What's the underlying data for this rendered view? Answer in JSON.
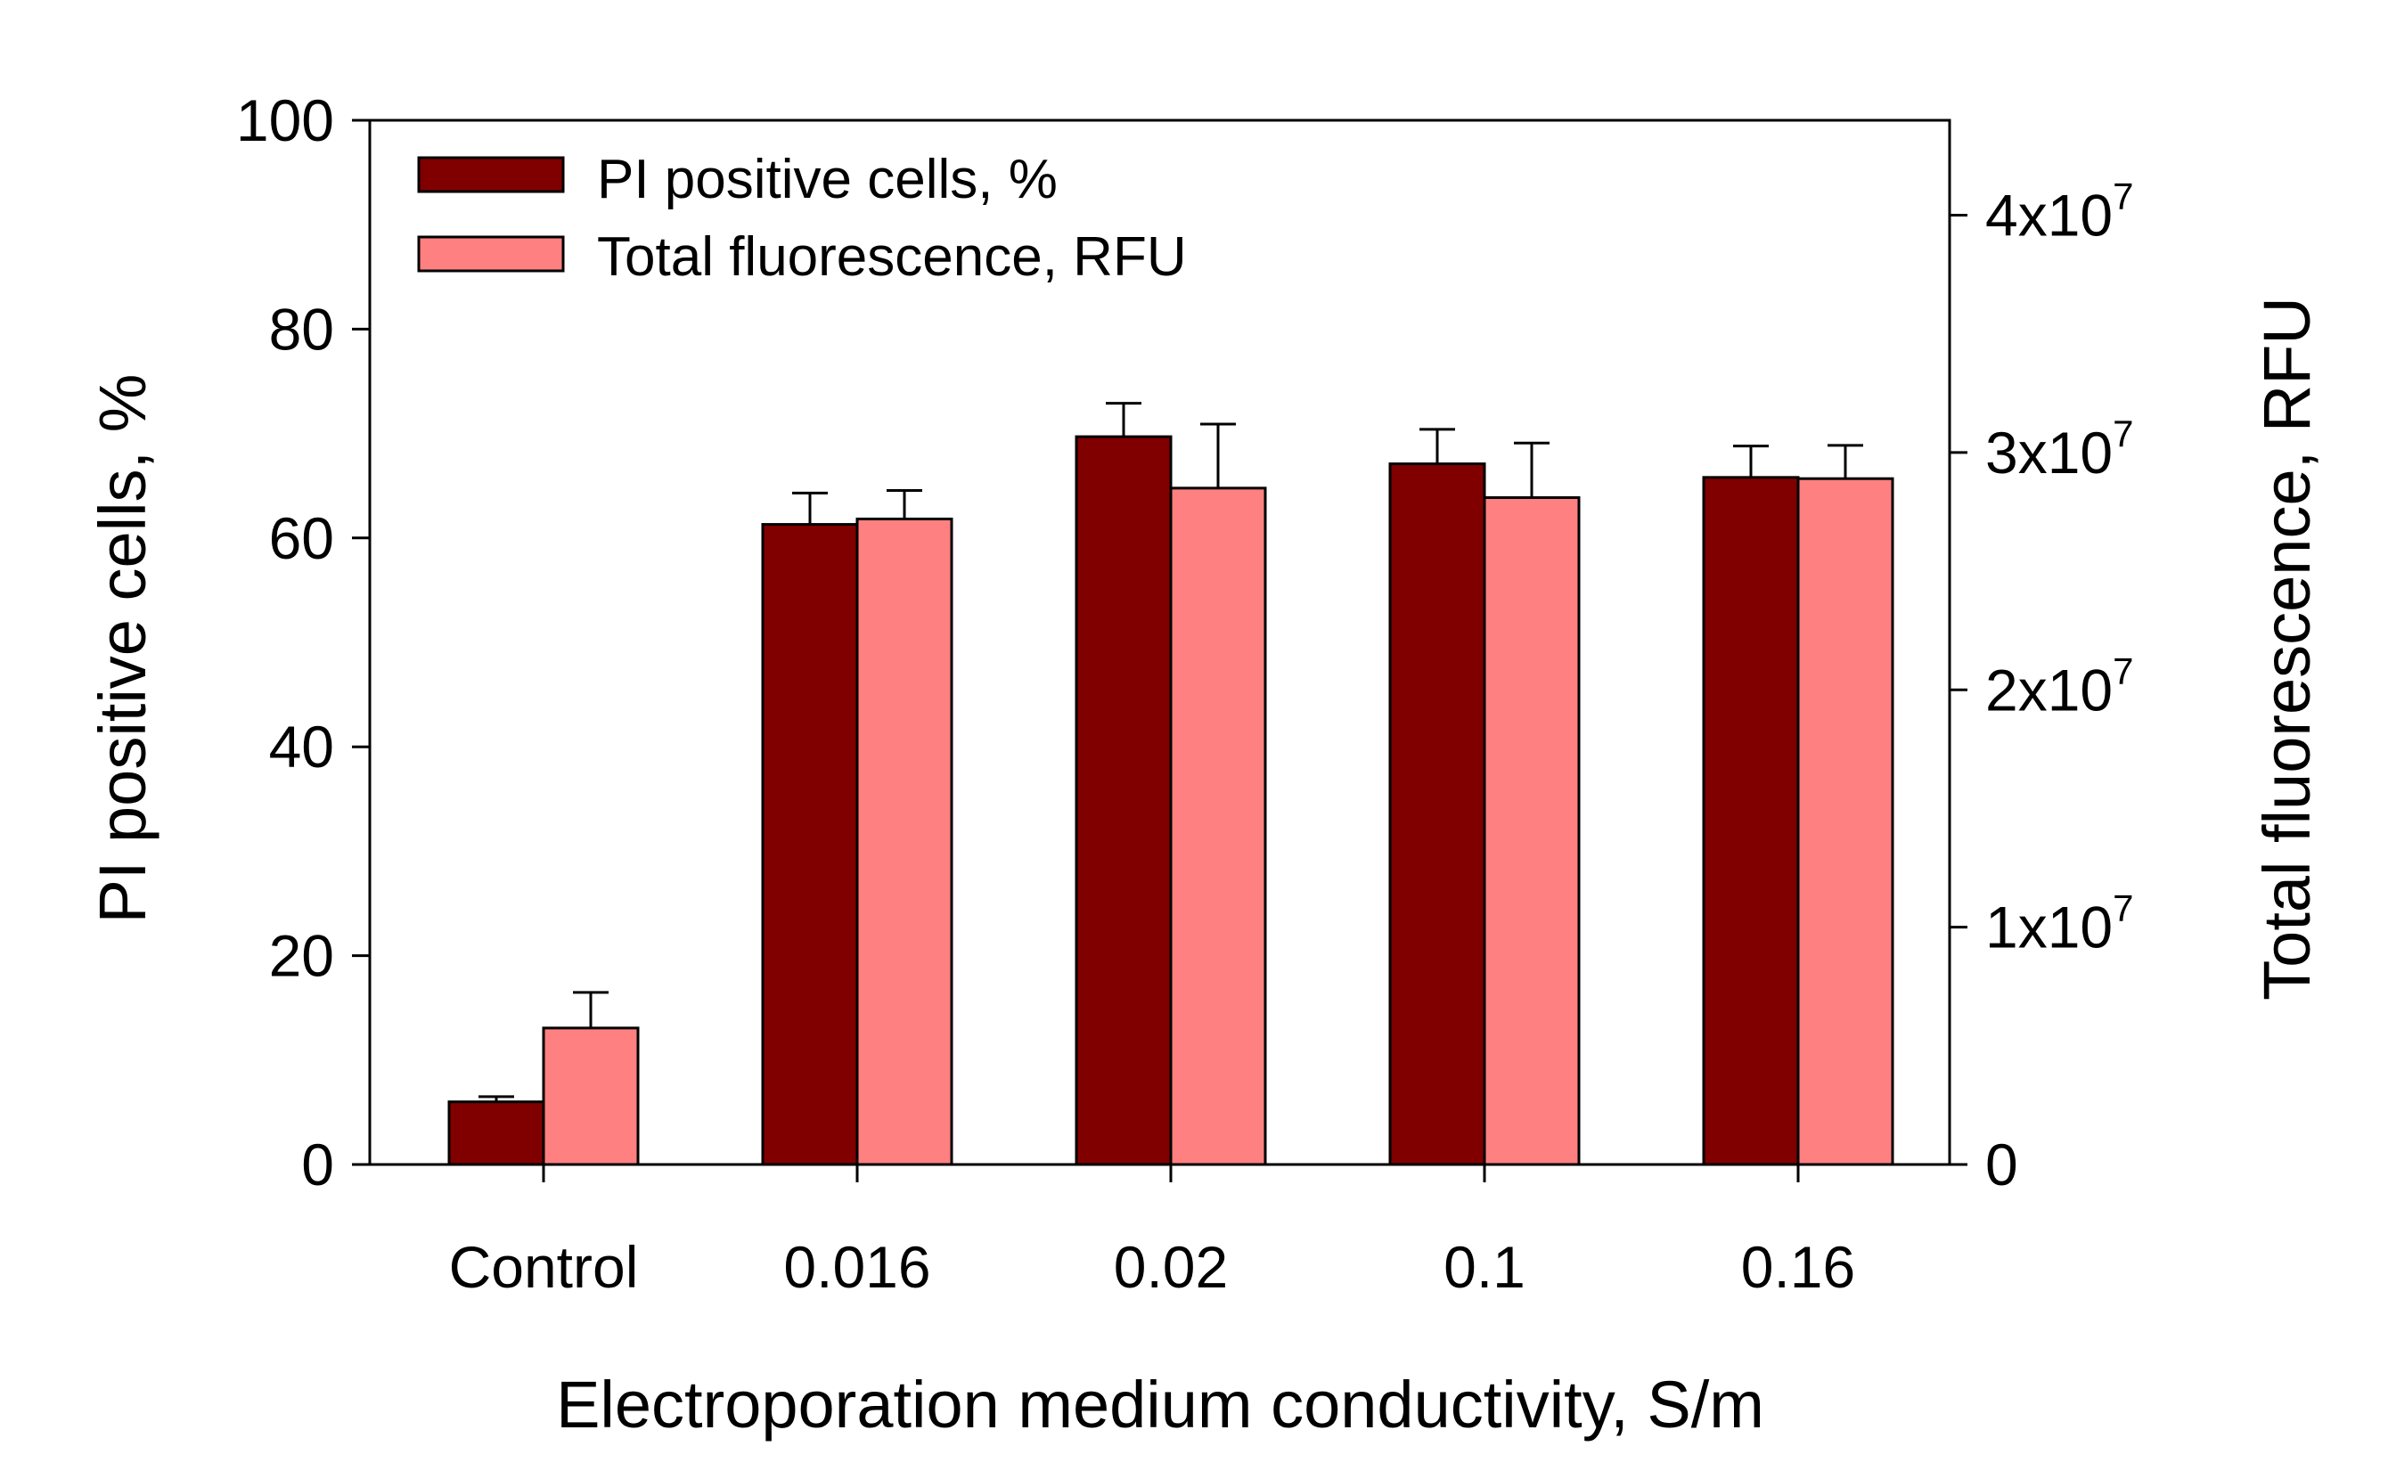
{
  "chart_data": {
    "type": "bar",
    "xlabel": "Electroporation medium conductivity, S/m",
    "ylabel": "PI positive cells, %",
    "y2label": "Total fluorescence, RFU",
    "categories": [
      "Control",
      "0.016",
      "0.02",
      "0.1",
      "0.16"
    ],
    "ylim": [
      0,
      100
    ],
    "y_ticks": [
      "0",
      "20",
      "40",
      "60",
      "80",
      "100"
    ],
    "y2lim": [
      0,
      44000000
    ],
    "y2_ticks": [
      {
        "value": 0,
        "base": "0",
        "exp": ""
      },
      {
        "value": 10000000,
        "base": "1x10",
        "exp": "7"
      },
      {
        "value": 20000000,
        "base": "2x10",
        "exp": "7"
      },
      {
        "value": 30000000,
        "base": "3x10",
        "exp": "7"
      },
      {
        "value": 40000000,
        "base": "4x10",
        "exp": "7"
      }
    ],
    "legend_position": "top-left",
    "series": [
      {
        "name": "PI positive cells, %",
        "axis": "left",
        "color": "#800000",
        "values": [
          6.0,
          61.3,
          69.7,
          67.1,
          65.8
        ],
        "errors": [
          0.5,
          3.0,
          3.2,
          3.3,
          3.0
        ]
      },
      {
        "name": "Total fluorescence, RFU",
        "axis": "right",
        "color": "#ff8080",
        "values": [
          5750000,
          27200000,
          28500000,
          28100000,
          28900000
        ],
        "errors": [
          1500000,
          1200000,
          2700000,
          2300000,
          1400000
        ]
      }
    ]
  }
}
